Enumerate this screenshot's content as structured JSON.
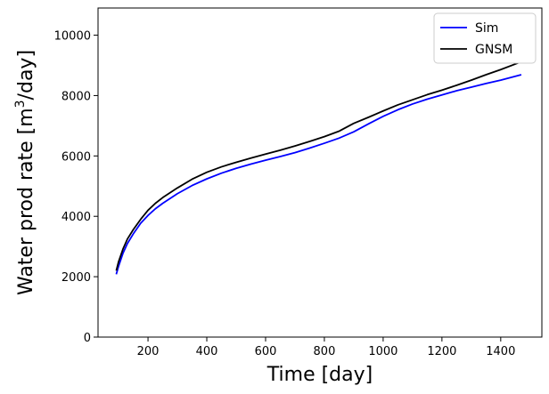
{
  "chart_data": {
    "type": "line",
    "title": "",
    "xlabel": "Time [day]",
    "ylabel_main": "Water prod rate [m",
    "ylabel_sup": "3",
    "ylabel_tail": "/day]",
    "xlim": [
      30,
      1540
    ],
    "ylim": [
      0,
      10900
    ],
    "xticks": [
      200,
      400,
      600,
      800,
      1000,
      1200,
      1400
    ],
    "yticks": [
      0,
      2000,
      4000,
      6000,
      8000,
      10000
    ],
    "grid": false,
    "legend_position": "top-right",
    "series": [
      {
        "name": "Sim",
        "color": "#0000ff",
        "x": [
          92,
          100,
          115,
          130,
          150,
          175,
          200,
          225,
          250,
          300,
          350,
          400,
          450,
          500,
          550,
          600,
          650,
          700,
          750,
          800,
          850,
          900,
          950,
          1000,
          1050,
          1100,
          1150,
          1200,
          1250,
          1300,
          1350,
          1400,
          1470
        ],
        "y": [
          2080,
          2350,
          2780,
          3100,
          3420,
          3770,
          4030,
          4250,
          4430,
          4750,
          5020,
          5240,
          5430,
          5590,
          5730,
          5860,
          5980,
          6110,
          6260,
          6420,
          6590,
          6800,
          7060,
          7310,
          7530,
          7720,
          7880,
          8020,
          8160,
          8280,
          8400,
          8510,
          8690
        ]
      },
      {
        "name": "GNSM",
        "color": "#000000",
        "x": [
          92,
          100,
          115,
          130,
          150,
          175,
          200,
          225,
          250,
          300,
          350,
          400,
          450,
          500,
          550,
          600,
          650,
          700,
          750,
          800,
          850,
          900,
          950,
          1000,
          1050,
          1100,
          1150,
          1200,
          1250,
          1300,
          1350,
          1400,
          1470
        ],
        "y": [
          2200,
          2500,
          2920,
          3250,
          3560,
          3900,
          4200,
          4430,
          4620,
          4940,
          5230,
          5460,
          5640,
          5790,
          5930,
          6060,
          6190,
          6330,
          6480,
          6640,
          6820,
          7080,
          7280,
          7490,
          7690,
          7860,
          8030,
          8180,
          8340,
          8510,
          8690,
          8860,
          9120
        ]
      }
    ]
  }
}
